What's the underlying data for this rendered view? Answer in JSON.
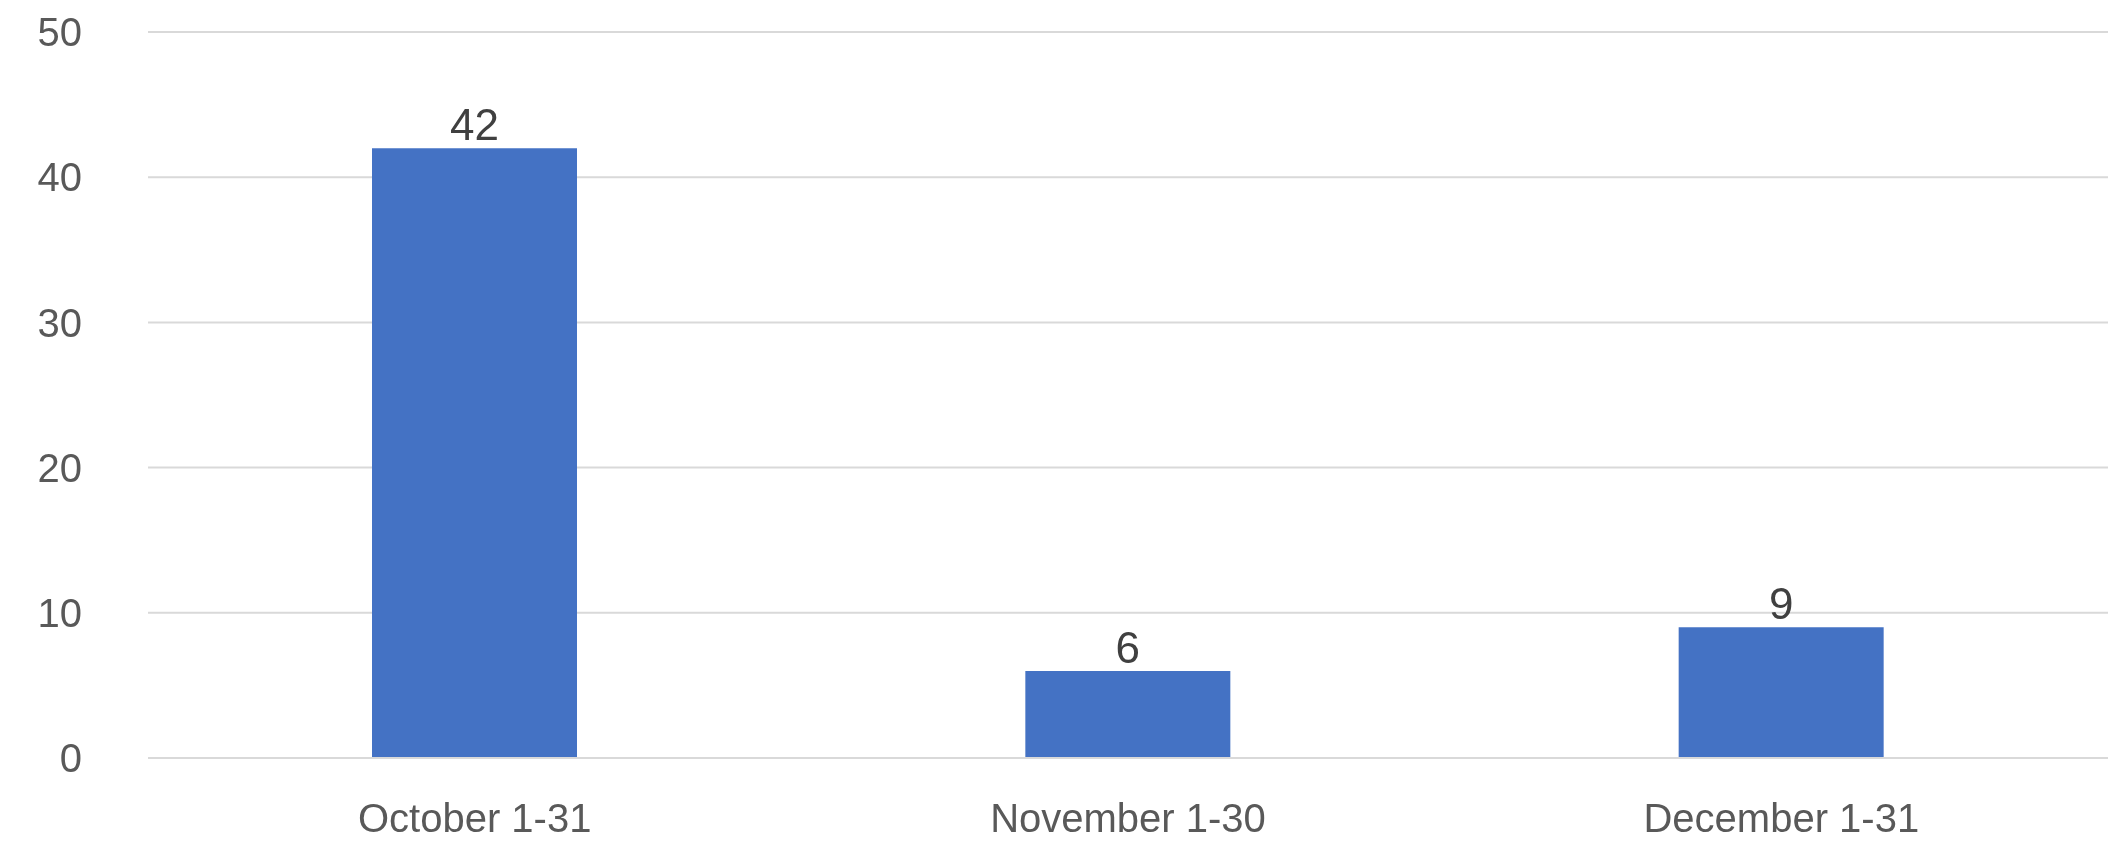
{
  "chart_data": {
    "type": "bar",
    "categories": [
      "October 1-31",
      "November 1-30",
      "December 1-31"
    ],
    "values": [
      42,
      6,
      9
    ],
    "color": "#4472c4",
    "ylim": [
      0,
      50
    ],
    "yticks": [
      0,
      10,
      20,
      30,
      40,
      50
    ],
    "grid": "y",
    "data_labels": true
  }
}
